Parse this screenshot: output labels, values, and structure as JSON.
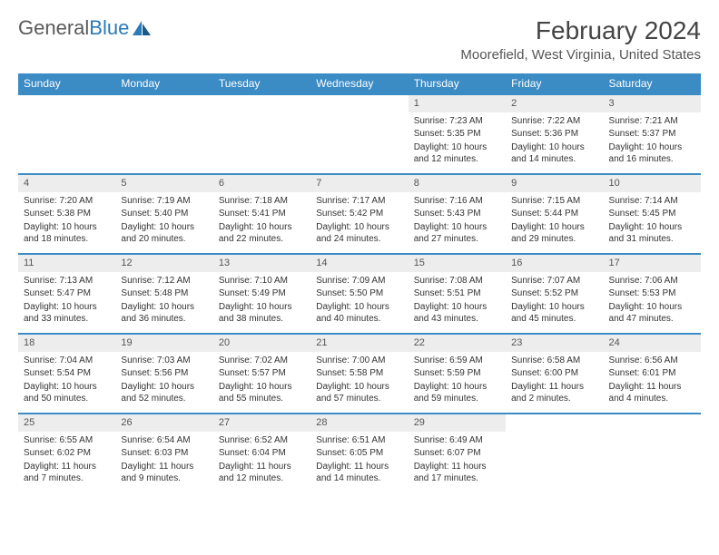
{
  "logo": {
    "text1": "General",
    "text2": "Blue"
  },
  "title": "February 2024",
  "location": "Moorefield, West Virginia, United States",
  "dayHeaders": [
    "Sunday",
    "Monday",
    "Tuesday",
    "Wednesday",
    "Thursday",
    "Friday",
    "Saturday"
  ],
  "colors": {
    "headerBg": "#3b8bc4",
    "rowBorder": "#3b8bc4",
    "dayNumBg": "#ededed"
  },
  "weeks": [
    [
      null,
      null,
      null,
      null,
      {
        "n": "1",
        "sr": "Sunrise: 7:23 AM",
        "ss": "Sunset: 5:35 PM",
        "dl": "Daylight: 10 hours and 12 minutes."
      },
      {
        "n": "2",
        "sr": "Sunrise: 7:22 AM",
        "ss": "Sunset: 5:36 PM",
        "dl": "Daylight: 10 hours and 14 minutes."
      },
      {
        "n": "3",
        "sr": "Sunrise: 7:21 AM",
        "ss": "Sunset: 5:37 PM",
        "dl": "Daylight: 10 hours and 16 minutes."
      }
    ],
    [
      {
        "n": "4",
        "sr": "Sunrise: 7:20 AM",
        "ss": "Sunset: 5:38 PM",
        "dl": "Daylight: 10 hours and 18 minutes."
      },
      {
        "n": "5",
        "sr": "Sunrise: 7:19 AM",
        "ss": "Sunset: 5:40 PM",
        "dl": "Daylight: 10 hours and 20 minutes."
      },
      {
        "n": "6",
        "sr": "Sunrise: 7:18 AM",
        "ss": "Sunset: 5:41 PM",
        "dl": "Daylight: 10 hours and 22 minutes."
      },
      {
        "n": "7",
        "sr": "Sunrise: 7:17 AM",
        "ss": "Sunset: 5:42 PM",
        "dl": "Daylight: 10 hours and 24 minutes."
      },
      {
        "n": "8",
        "sr": "Sunrise: 7:16 AM",
        "ss": "Sunset: 5:43 PM",
        "dl": "Daylight: 10 hours and 27 minutes."
      },
      {
        "n": "9",
        "sr": "Sunrise: 7:15 AM",
        "ss": "Sunset: 5:44 PM",
        "dl": "Daylight: 10 hours and 29 minutes."
      },
      {
        "n": "10",
        "sr": "Sunrise: 7:14 AM",
        "ss": "Sunset: 5:45 PM",
        "dl": "Daylight: 10 hours and 31 minutes."
      }
    ],
    [
      {
        "n": "11",
        "sr": "Sunrise: 7:13 AM",
        "ss": "Sunset: 5:47 PM",
        "dl": "Daylight: 10 hours and 33 minutes."
      },
      {
        "n": "12",
        "sr": "Sunrise: 7:12 AM",
        "ss": "Sunset: 5:48 PM",
        "dl": "Daylight: 10 hours and 36 minutes."
      },
      {
        "n": "13",
        "sr": "Sunrise: 7:10 AM",
        "ss": "Sunset: 5:49 PM",
        "dl": "Daylight: 10 hours and 38 minutes."
      },
      {
        "n": "14",
        "sr": "Sunrise: 7:09 AM",
        "ss": "Sunset: 5:50 PM",
        "dl": "Daylight: 10 hours and 40 minutes."
      },
      {
        "n": "15",
        "sr": "Sunrise: 7:08 AM",
        "ss": "Sunset: 5:51 PM",
        "dl": "Daylight: 10 hours and 43 minutes."
      },
      {
        "n": "16",
        "sr": "Sunrise: 7:07 AM",
        "ss": "Sunset: 5:52 PM",
        "dl": "Daylight: 10 hours and 45 minutes."
      },
      {
        "n": "17",
        "sr": "Sunrise: 7:06 AM",
        "ss": "Sunset: 5:53 PM",
        "dl": "Daylight: 10 hours and 47 minutes."
      }
    ],
    [
      {
        "n": "18",
        "sr": "Sunrise: 7:04 AM",
        "ss": "Sunset: 5:54 PM",
        "dl": "Daylight: 10 hours and 50 minutes."
      },
      {
        "n": "19",
        "sr": "Sunrise: 7:03 AM",
        "ss": "Sunset: 5:56 PM",
        "dl": "Daylight: 10 hours and 52 minutes."
      },
      {
        "n": "20",
        "sr": "Sunrise: 7:02 AM",
        "ss": "Sunset: 5:57 PM",
        "dl": "Daylight: 10 hours and 55 minutes."
      },
      {
        "n": "21",
        "sr": "Sunrise: 7:00 AM",
        "ss": "Sunset: 5:58 PM",
        "dl": "Daylight: 10 hours and 57 minutes."
      },
      {
        "n": "22",
        "sr": "Sunrise: 6:59 AM",
        "ss": "Sunset: 5:59 PM",
        "dl": "Daylight: 10 hours and 59 minutes."
      },
      {
        "n": "23",
        "sr": "Sunrise: 6:58 AM",
        "ss": "Sunset: 6:00 PM",
        "dl": "Daylight: 11 hours and 2 minutes."
      },
      {
        "n": "24",
        "sr": "Sunrise: 6:56 AM",
        "ss": "Sunset: 6:01 PM",
        "dl": "Daylight: 11 hours and 4 minutes."
      }
    ],
    [
      {
        "n": "25",
        "sr": "Sunrise: 6:55 AM",
        "ss": "Sunset: 6:02 PM",
        "dl": "Daylight: 11 hours and 7 minutes."
      },
      {
        "n": "26",
        "sr": "Sunrise: 6:54 AM",
        "ss": "Sunset: 6:03 PM",
        "dl": "Daylight: 11 hours and 9 minutes."
      },
      {
        "n": "27",
        "sr": "Sunrise: 6:52 AM",
        "ss": "Sunset: 6:04 PM",
        "dl": "Daylight: 11 hours and 12 minutes."
      },
      {
        "n": "28",
        "sr": "Sunrise: 6:51 AM",
        "ss": "Sunset: 6:05 PM",
        "dl": "Daylight: 11 hours and 14 minutes."
      },
      {
        "n": "29",
        "sr": "Sunrise: 6:49 AM",
        "ss": "Sunset: 6:07 PM",
        "dl": "Daylight: 11 hours and 17 minutes."
      },
      null,
      null
    ]
  ]
}
